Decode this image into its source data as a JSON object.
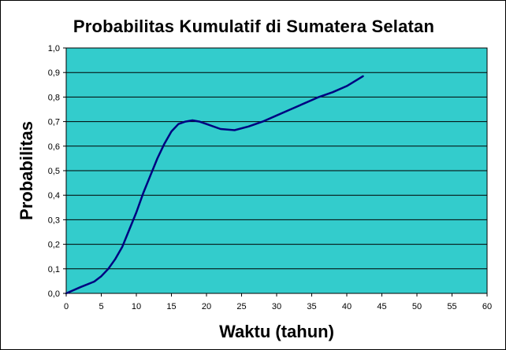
{
  "chart_data": {
    "type": "line",
    "title": "Probabilitas Kumulatif di  Sumatera Selatan",
    "xlabel": "Waktu (tahun)",
    "ylabel": "Probabilitas",
    "xlim": [
      0,
      60
    ],
    "ylim": [
      0,
      1
    ],
    "x_ticks": [
      0,
      5,
      10,
      15,
      20,
      25,
      30,
      35,
      40,
      45,
      50,
      55,
      60
    ],
    "x_tick_labels": [
      "0",
      "5",
      "10",
      "15",
      "20",
      "25",
      "30",
      "35",
      "40",
      "45",
      "50",
      "55",
      "60"
    ],
    "y_ticks": [
      0,
      0.1,
      0.2,
      0.3,
      0.4,
      0.5,
      0.6,
      0.7,
      0.8,
      0.9,
      1.0
    ],
    "y_tick_labels": [
      "0,0",
      "0,1",
      "0,2",
      "0,3",
      "0,4",
      "0,5",
      "0,6",
      "0,7",
      "0,8",
      "0,9",
      "1,0"
    ],
    "horizontal_grid": true,
    "vertical_grid": false,
    "legend": "none",
    "colors": {
      "plot_background": "#33CCCC",
      "line": "#000080",
      "grid": "#000000",
      "frame": "#000000"
    },
    "series": [
      {
        "x": [
          0,
          2,
          4,
          5,
          6,
          7,
          8,
          9,
          10,
          11,
          12,
          13,
          14,
          15,
          16,
          17,
          18,
          19,
          20,
          22,
          24,
          26,
          28,
          30,
          32,
          34,
          36,
          38,
          40,
          42.3
        ],
        "y": [
          0.0,
          0.025,
          0.048,
          0.07,
          0.1,
          0.14,
          0.19,
          0.26,
          0.33,
          0.41,
          0.48,
          0.55,
          0.61,
          0.66,
          0.69,
          0.7,
          0.705,
          0.7,
          0.69,
          0.67,
          0.665,
          0.68,
          0.7,
          0.725,
          0.75,
          0.775,
          0.8,
          0.82,
          0.845,
          0.885
        ]
      }
    ]
  }
}
